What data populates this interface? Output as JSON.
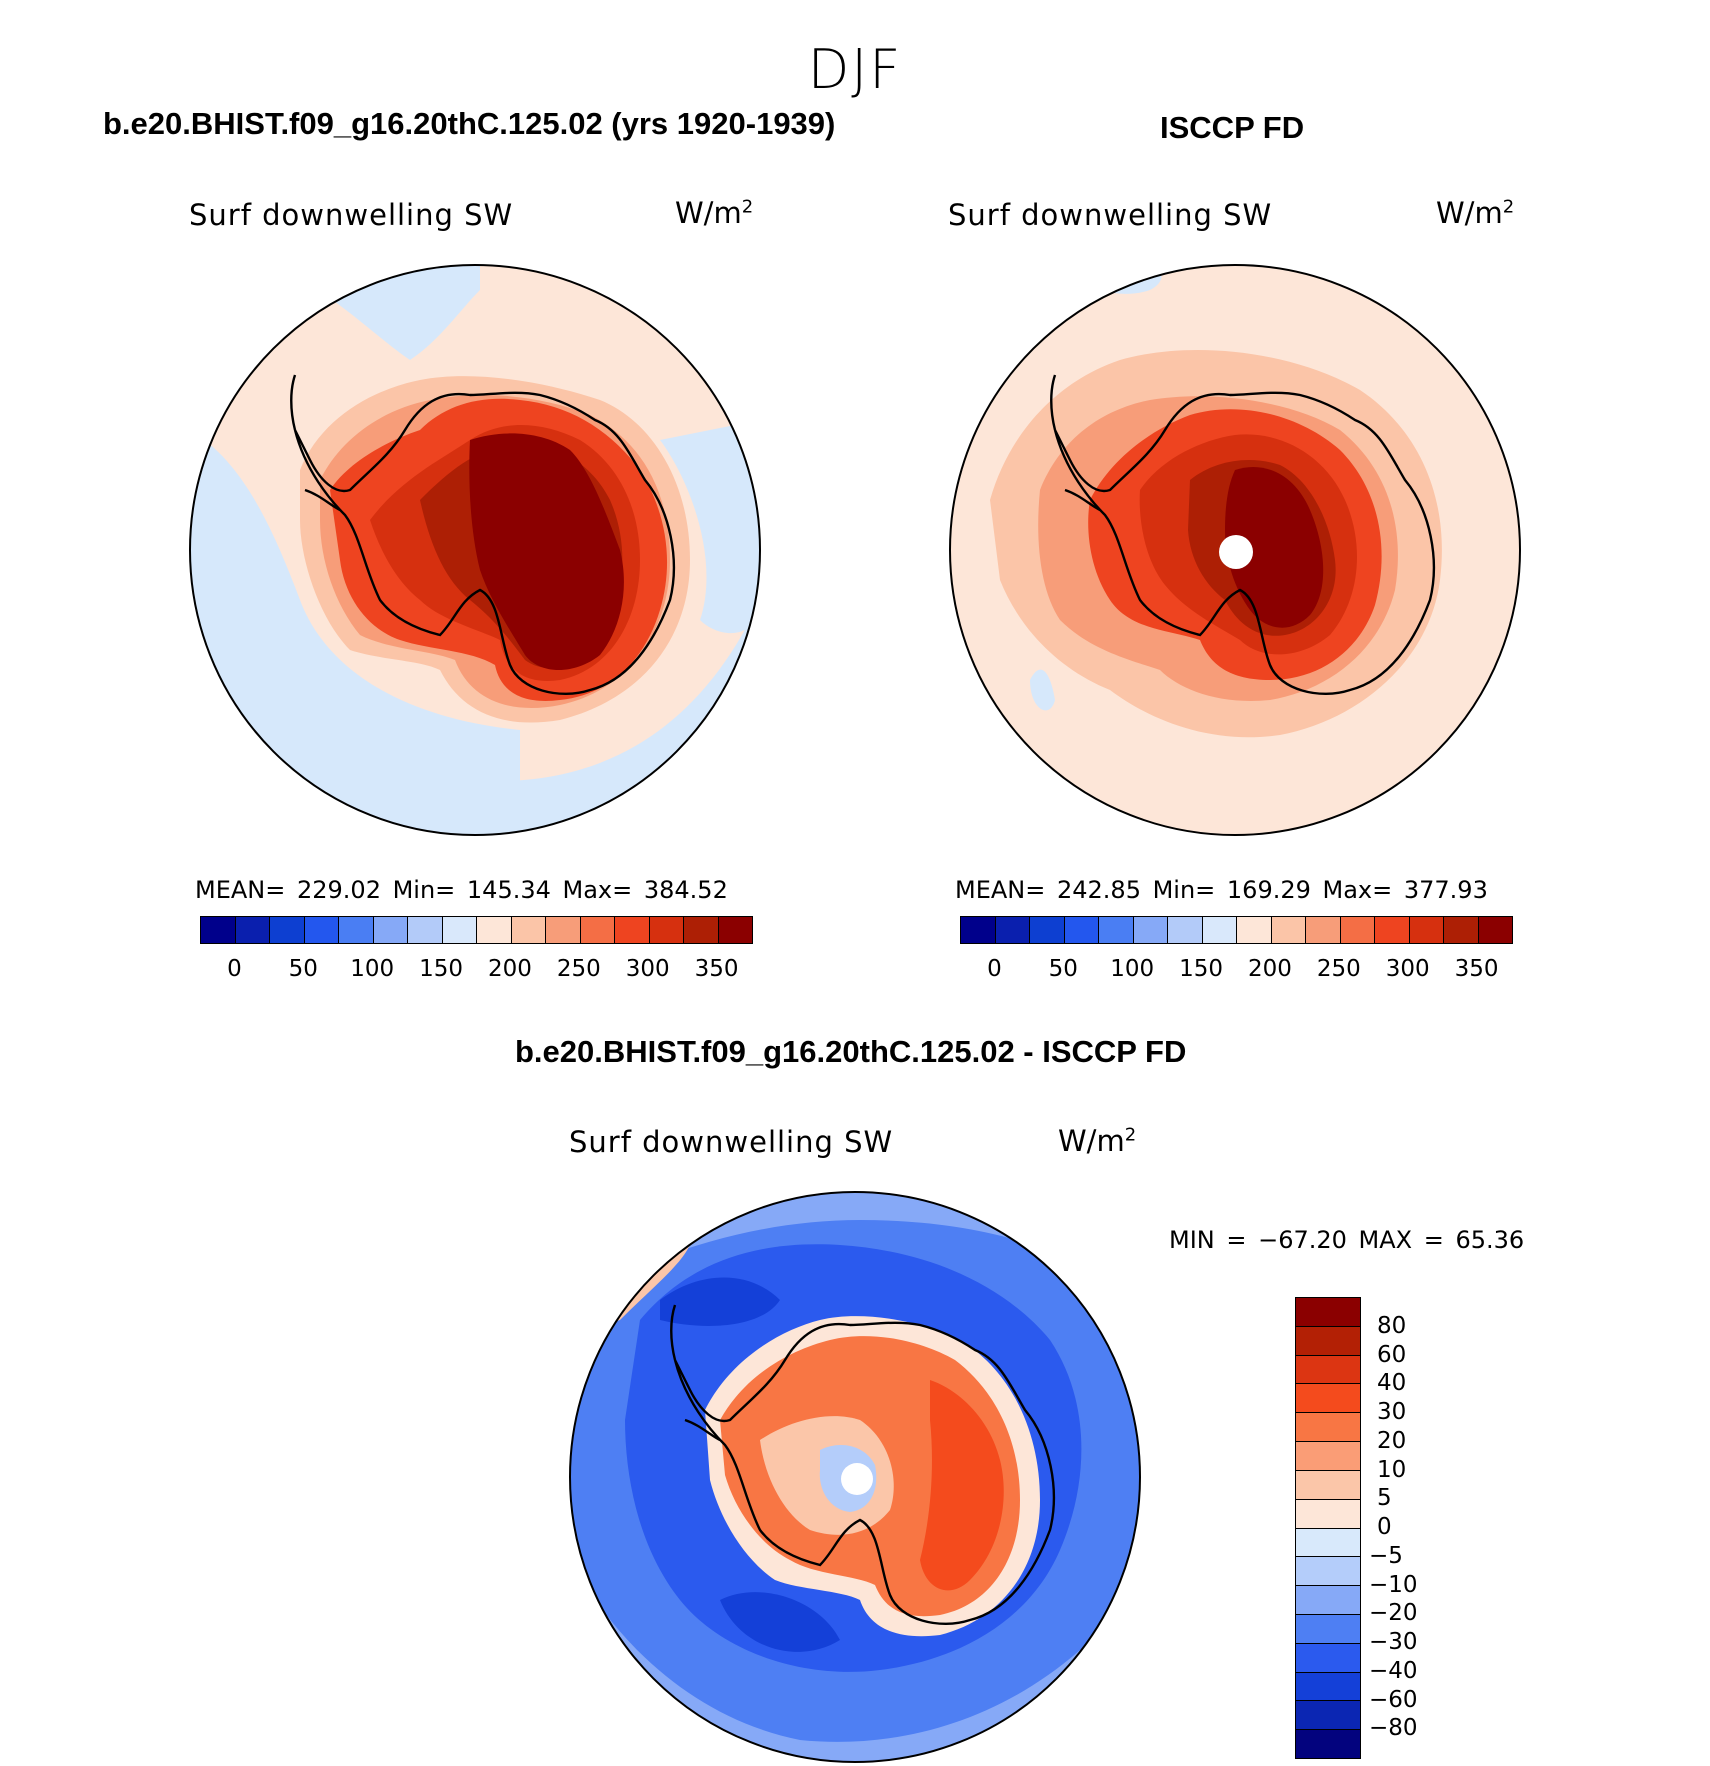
{
  "season": "DJF",
  "panels": [
    {
      "title": "b.e20.BHIST.f09_g16.20thC.125.02 (yrs 1920-1939)",
      "variable": "Surf  downwelling  SW",
      "unit": "W/m",
      "unit_sup": "2",
      "stats": "MEAN= 229.02   Min= 145.34   Max= 384.52"
    },
    {
      "title": "ISCCP FD",
      "variable": "Surf  downwelling  SW",
      "unit": "W/m",
      "unit_sup": "2",
      "stats": "MEAN= 242.85   Min= 169.29   Max= 377.93"
    },
    {
      "title": "b.e20.BHIST.f09_g16.20thC.125.02 - ISCCP FD",
      "variable": "Surf  downwelling  SW",
      "unit": "W/m",
      "unit_sup": "2",
      "stats": "MIN = −67.20 MAX =   65.36"
    }
  ],
  "abs_colorbar": {
    "colors": [
      "#00008b",
      "#0a1fae",
      "#0d3fd1",
      "#2357ee",
      "#4a7ef3",
      "#86a9f7",
      "#b3cbf9",
      "#d9e8fb",
      "#fde6d8",
      "#fbc5a8",
      "#f79d79",
      "#f46e45",
      "#ee4420",
      "#d6300f",
      "#ad1f05",
      "#8b0000"
    ],
    "labels": [
      "0",
      "50",
      "100",
      "150",
      "200",
      "250",
      "300",
      "350"
    ]
  },
  "diff_colorbar": {
    "colors_top_to_bottom": [
      "#8b0000",
      "#b32005",
      "#dc3512",
      "#f44b1d",
      "#f87644",
      "#fa9d76",
      "#fbc6a9",
      "#fde6d8",
      "#d8e9fb",
      "#b4cdfa",
      "#86a9f7",
      "#4e7ff3",
      "#2b5aee",
      "#1440d8",
      "#0b26b3",
      "#03037e"
    ],
    "labels_top_to_bottom": [
      "80",
      "60",
      "40",
      "30",
      "20",
      "10",
      "5",
      "0",
      "−5",
      "−10",
      "−20",
      "−30",
      "−40",
      "−60",
      "−80"
    ]
  },
  "map_colors": {
    "land_outline": "#000000",
    "model_ocean": "#d6e8fb",
    "obs_ocean": "#fde6d8",
    "diff_ocean": "#2f63ee"
  }
}
